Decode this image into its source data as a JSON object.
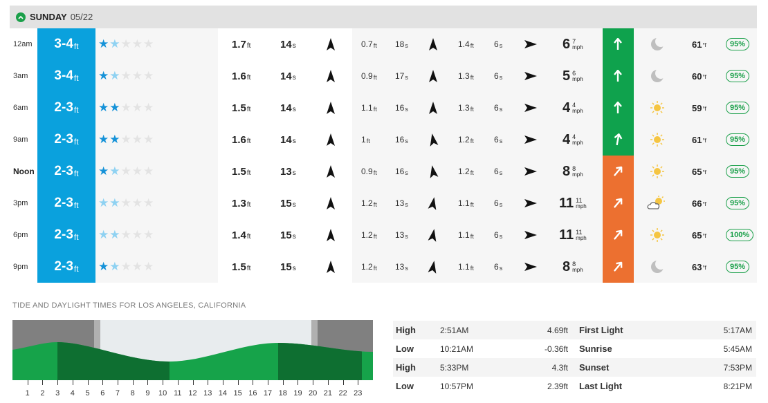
{
  "header": {
    "day": "SUNDAY",
    "date": "05/22"
  },
  "units": {
    "ft": "ft",
    "s": "s",
    "mph": "mph",
    "deg": "°f"
  },
  "colors": {
    "surf_blue": "#0aa1dd",
    "wind_good": "#0fa24d",
    "wind_poor": "#ec7030",
    "prob_green": "#1ba04a"
  },
  "rows": [
    {
      "time": "12am",
      "surf": "3-4",
      "stars": [
        2,
        1,
        0,
        0,
        0
      ],
      "swell1_h": "1.7",
      "swell1_p": "14",
      "swell1_dir": 0,
      "swell2_h": "0.7",
      "swell2_p": "18",
      "swell2_dir": 0,
      "swell3_h": "1.4",
      "swell3_p": "6",
      "swell3_dir": 90,
      "wind": "6",
      "gust": "7",
      "wind_dir": 0,
      "wind_color": "green",
      "weather": "moon-icon",
      "temp": "61",
      "prob": "95%"
    },
    {
      "time": "3am",
      "surf": "3-4",
      "stars": [
        2,
        1,
        0,
        0,
        0
      ],
      "swell1_h": "1.6",
      "swell1_p": "14",
      "swell1_dir": 0,
      "swell2_h": "0.9",
      "swell2_p": "17",
      "swell2_dir": 0,
      "swell3_h": "1.3",
      "swell3_p": "6",
      "swell3_dir": 90,
      "wind": "5",
      "gust": "6",
      "wind_dir": 0,
      "wind_color": "green",
      "weather": "moon-icon",
      "temp": "60",
      "prob": "95%"
    },
    {
      "time": "6am",
      "surf": "2-3",
      "stars": [
        2,
        2,
        0,
        0,
        0
      ],
      "swell1_h": "1.5",
      "swell1_p": "14",
      "swell1_dir": 0,
      "swell2_h": "1.1",
      "swell2_p": "16",
      "swell2_dir": 0,
      "swell3_h": "1.3",
      "swell3_p": "6",
      "swell3_dir": 90,
      "wind": "4",
      "gust": "4",
      "wind_dir": 0,
      "wind_color": "green",
      "weather": "sun-icon",
      "temp": "59",
      "prob": "95%"
    },
    {
      "time": "9am",
      "surf": "2-3",
      "stars": [
        2,
        2,
        0,
        0,
        0
      ],
      "swell1_h": "1.6",
      "swell1_p": "14",
      "swell1_dir": 0,
      "swell2_h": "1",
      "swell2_p": "16",
      "swell2_dir": -10,
      "swell3_h": "1.2",
      "swell3_p": "6",
      "swell3_dir": 90,
      "wind": "4",
      "gust": "4",
      "wind_dir": 10,
      "wind_color": "green",
      "weather": "sun-icon",
      "temp": "61",
      "prob": "95%"
    },
    {
      "time": "Noon",
      "surf": "2-3",
      "stars": [
        2,
        1,
        0,
        0,
        0
      ],
      "swell1_h": "1.5",
      "swell1_p": "13",
      "swell1_dir": 0,
      "swell2_h": "0.9",
      "swell2_p": "16",
      "swell2_dir": -10,
      "swell3_h": "1.2",
      "swell3_p": "6",
      "swell3_dir": 90,
      "wind": "8",
      "gust": "8",
      "wind_dir": 40,
      "wind_color": "orange",
      "weather": "sun-icon",
      "temp": "65",
      "prob": "95%"
    },
    {
      "time": "3pm",
      "surf": "2-3",
      "stars": [
        1,
        1,
        0,
        0,
        0
      ],
      "swell1_h": "1.3",
      "swell1_p": "15",
      "swell1_dir": 0,
      "swell2_h": "1.2",
      "swell2_p": "13",
      "swell2_dir": 10,
      "swell3_h": "1.1",
      "swell3_p": "6",
      "swell3_dir": 90,
      "wind": "11",
      "gust": "11",
      "wind_dir": 40,
      "wind_color": "orange",
      "weather": "partly-cloudy-icon",
      "temp": "66",
      "prob": "95%"
    },
    {
      "time": "6pm",
      "surf": "2-3",
      "stars": [
        1,
        1,
        0,
        0,
        0
      ],
      "swell1_h": "1.4",
      "swell1_p": "15",
      "swell1_dir": 0,
      "swell2_h": "1.2",
      "swell2_p": "13",
      "swell2_dir": 10,
      "swell3_h": "1.1",
      "swell3_p": "6",
      "swell3_dir": 90,
      "wind": "11",
      "gust": "11",
      "wind_dir": 40,
      "wind_color": "orange",
      "weather": "sun-icon",
      "temp": "65",
      "prob": "100%"
    },
    {
      "time": "9pm",
      "surf": "2-3",
      "stars": [
        2,
        1,
        0,
        0,
        0
      ],
      "swell1_h": "1.5",
      "swell1_p": "15",
      "swell1_dir": 0,
      "swell2_h": "1.2",
      "swell2_p": "13",
      "swell2_dir": 10,
      "swell3_h": "1.1",
      "swell3_p": "6",
      "swell3_dir": 90,
      "wind": "8",
      "gust": "8",
      "wind_dir": 40,
      "wind_color": "orange",
      "weather": "moon-icon",
      "temp": "63",
      "prob": "95%"
    }
  ],
  "tide": {
    "title": "TIDE AND DAYLIGHT TIMES FOR LOS ANGELES, CALIFORNIA",
    "hours": [
      "1",
      "2",
      "3",
      "4",
      "5",
      "6",
      "7",
      "8",
      "9",
      "10",
      "11",
      "12",
      "13",
      "14",
      "15",
      "16",
      "17",
      "18",
      "19",
      "20",
      "21",
      "22",
      "23"
    ],
    "entries": [
      {
        "type": "High",
        "time": "2:51AM",
        "height": "4.69ft"
      },
      {
        "type": "Low",
        "time": "10:21AM",
        "height": "-0.36ft"
      },
      {
        "type": "High",
        "time": "5:33PM",
        "height": "4.3ft"
      },
      {
        "type": "Low",
        "time": "10:57PM",
        "height": "2.39ft"
      }
    ],
    "daylight": [
      {
        "label": "First Light",
        "time": "5:17AM"
      },
      {
        "label": "Sunrise",
        "time": "5:45AM"
      },
      {
        "label": "Sunset",
        "time": "7:53PM"
      },
      {
        "label": "Last Light",
        "time": "8:21PM"
      }
    ]
  }
}
